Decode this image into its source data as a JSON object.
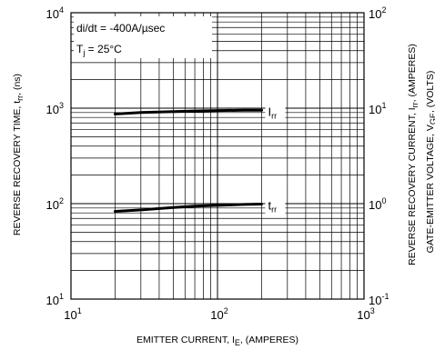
{
  "chart_data": {
    "type": "line",
    "x_scale": "log",
    "y_scale": "log",
    "y2_scale": "log",
    "xlim": [
      10,
      1000
    ],
    "ylim": [
      10,
      10000
    ],
    "y2lim": [
      0.1,
      100
    ],
    "grid": true,
    "x_ticks": [
      {
        "base": "10",
        "exp": "1"
      },
      {
        "base": "10",
        "exp": "2"
      },
      {
        "base": "10",
        "exp": "3"
      }
    ],
    "y_ticks": [
      {
        "base": "10",
        "exp": "1"
      },
      {
        "base": "10",
        "exp": "2"
      },
      {
        "base": "10",
        "exp": "3"
      },
      {
        "base": "10",
        "exp": "4"
      }
    ],
    "y2_ticks": [
      {
        "base": "10",
        "exp": "-1"
      },
      {
        "base": "10",
        "exp": "0"
      },
      {
        "base": "10",
        "exp": "1"
      },
      {
        "base": "10",
        "exp": "2"
      }
    ],
    "xlabel": {
      "main": "EMITTER CURRENT, I",
      "sub": "E",
      "tail": ", (AMPERES)"
    },
    "ylabel": {
      "main": "REVERSE RECOVERY TIME, t",
      "sub": "rr",
      "tail": ", (ns)"
    },
    "y2label": {
      "main": "REVERSE RECOVERY CURRENT, I",
      "sub": "rr",
      "tail": ", (AMPERES)"
    },
    "y3label": {
      "main": "GATE-EMITTER VOLTAGE, V",
      "sub": "GE",
      "tail": ", (VOLTS)"
    },
    "annotations": {
      "line1": "di/dt = -400A/µsec",
      "line2_main": "T",
      "line2_sub": "j",
      "line2_tail": " = 25°C"
    },
    "series": [
      {
        "name_main": "I",
        "name_sub": "rr",
        "axis": "right",
        "x": [
          20,
          30,
          50,
          70,
          100,
          150,
          200
        ],
        "y": [
          8.7,
          9.0,
          9.2,
          9.35,
          9.45,
          9.5,
          9.5
        ]
      },
      {
        "name_main": "t",
        "name_sub": "rr",
        "axis": "left",
        "x": [
          20,
          30,
          50,
          70,
          100,
          150,
          200
        ],
        "y": [
          83,
          86,
          91,
          94,
          96,
          98,
          99
        ]
      }
    ]
  }
}
